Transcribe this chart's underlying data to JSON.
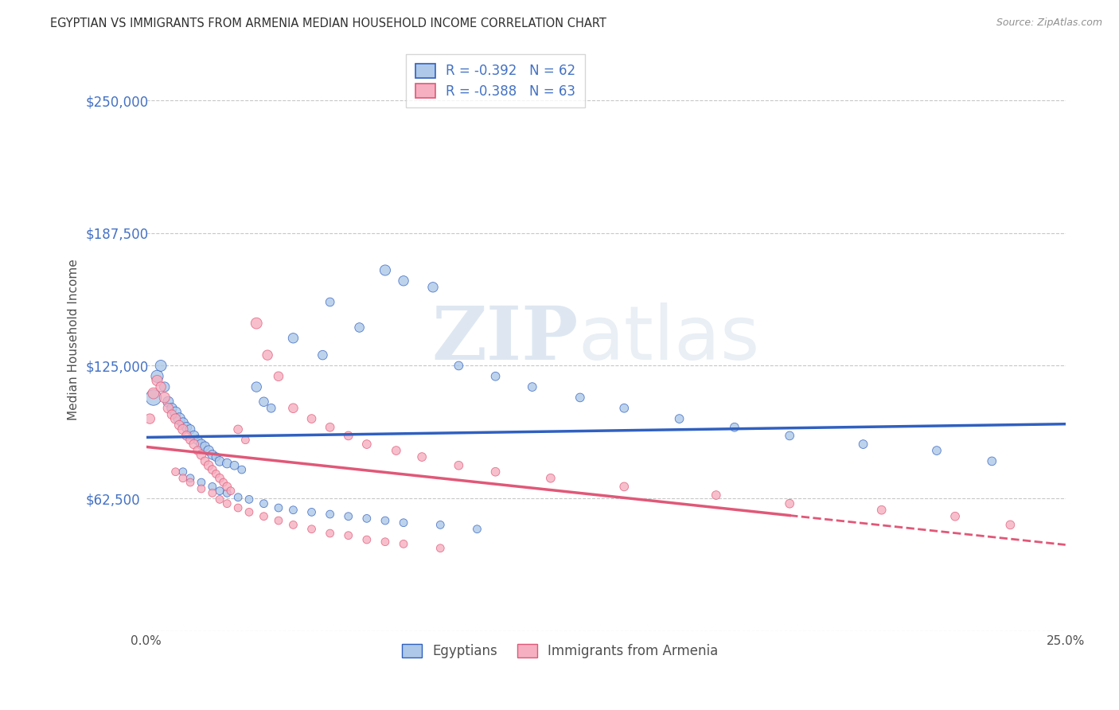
{
  "title": "EGYPTIAN VS IMMIGRANTS FROM ARMENIA MEDIAN HOUSEHOLD INCOME CORRELATION CHART",
  "source": "Source: ZipAtlas.com",
  "ylabel": "Median Household Income",
  "xlim": [
    0.0,
    0.25
  ],
  "ylim": [
    0,
    275000
  ],
  "yticks": [
    0,
    62500,
    125000,
    187500,
    250000
  ],
  "ytick_labels": [
    "",
    "$62,500",
    "$125,000",
    "$187,500",
    "$250,000"
  ],
  "xticks": [
    0.0,
    0.05,
    0.1,
    0.15,
    0.2,
    0.25
  ],
  "xtick_labels": [
    "0.0%",
    "",
    "",
    "",
    "",
    "25.0%"
  ],
  "legend_R1": "R = -0.392",
  "legend_N1": "N = 62",
  "legend_R2": "R = -0.388",
  "legend_N2": "N = 63",
  "legend_label1": "Egyptians",
  "legend_label2": "Immigrants from Armenia",
  "series1_color": "#adc8e8",
  "series2_color": "#f5afc0",
  "line1_color": "#3060c0",
  "line2_color": "#e05878",
  "watermark_zip": "ZIP",
  "watermark_atlas": "atlas",
  "background_color": "#ffffff",
  "grid_color": "#c8c8c8",
  "title_color": "#303030",
  "axis_label_color": "#505050",
  "ytick_color": "#4472c4",
  "xtick_color": "#505050",
  "series1_x": [
    0.002,
    0.003,
    0.004,
    0.005,
    0.006,
    0.007,
    0.008,
    0.009,
    0.01,
    0.011,
    0.012,
    0.013,
    0.014,
    0.015,
    0.016,
    0.017,
    0.018,
    0.019,
    0.02,
    0.022,
    0.024,
    0.026,
    0.03,
    0.032,
    0.034,
    0.04,
    0.048,
    0.05,
    0.058,
    0.065,
    0.07,
    0.078,
    0.085,
    0.095,
    0.105,
    0.118,
    0.13,
    0.145,
    0.16,
    0.175,
    0.195,
    0.215,
    0.23,
    0.01,
    0.012,
    0.015,
    0.018,
    0.02,
    0.022,
    0.025,
    0.028,
    0.032,
    0.036,
    0.04,
    0.045,
    0.05,
    0.055,
    0.06,
    0.065,
    0.07,
    0.08,
    0.09
  ],
  "series1_y": [
    110000,
    120000,
    125000,
    115000,
    108000,
    105000,
    103000,
    100000,
    98000,
    96000,
    95000,
    92000,
    90000,
    88000,
    87000,
    85000,
    83000,
    82000,
    80000,
    79000,
    78000,
    76000,
    115000,
    108000,
    105000,
    138000,
    130000,
    155000,
    143000,
    170000,
    165000,
    162000,
    125000,
    120000,
    115000,
    110000,
    105000,
    100000,
    96000,
    92000,
    88000,
    85000,
    80000,
    75000,
    72000,
    70000,
    68000,
    66000,
    65000,
    63000,
    62000,
    60000,
    58000,
    57000,
    56000,
    55000,
    54000,
    53000,
    52000,
    51000,
    50000,
    48000
  ],
  "series1_sizes": [
    200,
    120,
    100,
    80,
    90,
    80,
    100,
    110,
    90,
    80,
    70,
    80,
    70,
    80,
    70,
    80,
    70,
    60,
    70,
    70,
    60,
    50,
    80,
    70,
    60,
    80,
    70,
    60,
    70,
    90,
    80,
    80,
    60,
    60,
    60,
    60,
    60,
    60,
    60,
    60,
    60,
    60,
    60,
    50,
    50,
    50,
    50,
    50,
    50,
    50,
    50,
    50,
    50,
    50,
    50,
    50,
    50,
    50,
    50,
    50,
    50,
    50
  ],
  "series2_x": [
    0.001,
    0.002,
    0.003,
    0.004,
    0.005,
    0.006,
    0.007,
    0.008,
    0.009,
    0.01,
    0.011,
    0.012,
    0.013,
    0.014,
    0.015,
    0.016,
    0.017,
    0.018,
    0.019,
    0.02,
    0.021,
    0.022,
    0.023,
    0.025,
    0.027,
    0.03,
    0.033,
    0.036,
    0.04,
    0.045,
    0.05,
    0.055,
    0.06,
    0.068,
    0.075,
    0.085,
    0.095,
    0.11,
    0.13,
    0.155,
    0.175,
    0.2,
    0.22,
    0.235,
    0.008,
    0.01,
    0.012,
    0.015,
    0.018,
    0.02,
    0.022,
    0.025,
    0.028,
    0.032,
    0.036,
    0.04,
    0.045,
    0.05,
    0.055,
    0.06,
    0.065,
    0.07,
    0.08
  ],
  "series2_y": [
    100000,
    112000,
    118000,
    115000,
    110000,
    105000,
    102000,
    100000,
    97000,
    95000,
    92000,
    90000,
    88000,
    85000,
    83000,
    80000,
    78000,
    76000,
    74000,
    72000,
    70000,
    68000,
    66000,
    95000,
    90000,
    145000,
    130000,
    120000,
    105000,
    100000,
    96000,
    92000,
    88000,
    85000,
    82000,
    78000,
    75000,
    72000,
    68000,
    64000,
    60000,
    57000,
    54000,
    50000,
    75000,
    72000,
    70000,
    67000,
    65000,
    62000,
    60000,
    58000,
    56000,
    54000,
    52000,
    50000,
    48000,
    46000,
    45000,
    43000,
    42000,
    41000,
    39000
  ],
  "series2_sizes": [
    80,
    100,
    90,
    80,
    90,
    80,
    70,
    80,
    70,
    80,
    70,
    60,
    70,
    60,
    70,
    60,
    70,
    60,
    50,
    60,
    50,
    60,
    50,
    60,
    50,
    100,
    80,
    70,
    70,
    60,
    60,
    60,
    60,
    60,
    60,
    60,
    60,
    60,
    60,
    60,
    60,
    60,
    60,
    60,
    50,
    50,
    50,
    50,
    50,
    50,
    50,
    50,
    50,
    50,
    50,
    50,
    50,
    50,
    50,
    50,
    50,
    50,
    50
  ]
}
